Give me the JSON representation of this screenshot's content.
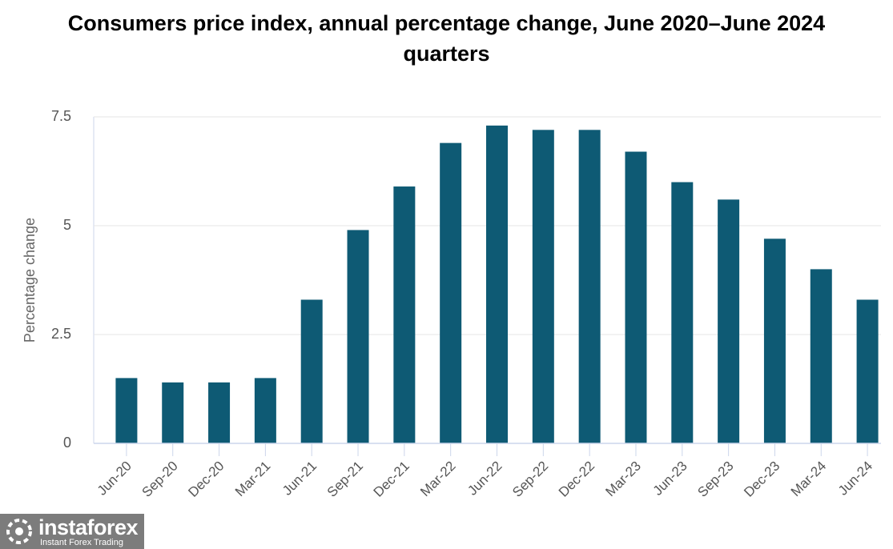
{
  "chart_data": {
    "type": "bar",
    "title": "Consumers price index, annual percentage change, June 2020–June 2024 quarters",
    "y_label": "Percentage change",
    "categories": [
      "Jun-20",
      "Sep-20",
      "Dec-20",
      "Mar-21",
      "Jun-21",
      "Sep-21",
      "Dec-21",
      "Mar-22",
      "Jun-22",
      "Sep-22",
      "Dec-22",
      "Mar-23",
      "Jun-23",
      "Sep-23",
      "Dec-23",
      "Mar-24",
      "Jun-24"
    ],
    "values": [
      1.5,
      1.4,
      1.4,
      1.5,
      3.3,
      4.9,
      5.9,
      6.9,
      7.3,
      7.2,
      7.2,
      6.7,
      6.0,
      5.6,
      4.7,
      4.0,
      3.3
    ],
    "color": "#0e5a74",
    "ylim": [
      0,
      7.5
    ],
    "yticks": [
      0,
      2.5,
      5,
      7.5
    ],
    "grid": true
  },
  "watermark": {
    "name": "instaforex",
    "tagline": "Instant Forex Trading"
  }
}
